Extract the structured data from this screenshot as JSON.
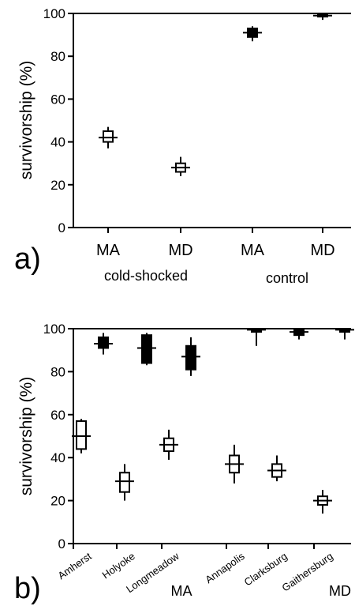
{
  "chart_data": [
    {
      "type": "box",
      "panel_label": "a)",
      "ylabel": "survivorship (%)",
      "ylim": [
        0,
        100
      ],
      "yticks": [
        0,
        20,
        40,
        60,
        80,
        100
      ],
      "categories": [
        "MA",
        "MD",
        "MA",
        "MD"
      ],
      "group_labels": [
        "cold-shocked",
        "control"
      ],
      "series": [
        {
          "category": "MA",
          "group": "cold-shocked",
          "fill": "#ffffff",
          "median": 42,
          "q1": 40,
          "q3": 45,
          "min": 37,
          "max": 47
        },
        {
          "category": "MD",
          "group": "cold-shocked",
          "fill": "#ffffff",
          "median": 28,
          "q1": 26,
          "q3": 30,
          "min": 24,
          "max": 33
        },
        {
          "category": "MA",
          "group": "control",
          "fill": "#000000",
          "median": 91,
          "q1": 89,
          "q3": 93,
          "min": 87,
          "max": 94
        },
        {
          "category": "MD",
          "group": "control",
          "fill": "#000000",
          "median": 99,
          "q1": 98.5,
          "q3": 100,
          "min": 97,
          "max": 100
        }
      ]
    },
    {
      "type": "box",
      "panel_label": "b)",
      "ylabel": "survivorship (%)",
      "ylim": [
        0,
        100
      ],
      "yticks": [
        0,
        20,
        40,
        60,
        80,
        100
      ],
      "categories": [
        "Amherst",
        "Holyoke",
        "Longmeadow",
        "Annapolis",
        "Clarksburg",
        "Gaithersburg"
      ],
      "region_labels": [
        {
          "text": "MA",
          "after": "Longmeadow"
        },
        {
          "text": "MD",
          "after": "Gaithersburg"
        }
      ],
      "series": [
        {
          "name": "cold-shocked",
          "fill": "#ffffff",
          "boxes": [
            {
              "category": "Amherst",
              "median": 50,
              "q1": 44,
              "q3": 57,
              "min": 42,
              "max": 58
            },
            {
              "category": "Holyoke",
              "median": 29,
              "q1": 24,
              "q3": 33,
              "min": 20,
              "max": 37
            },
            {
              "category": "Longmeadow",
              "median": 46,
              "q1": 43,
              "q3": 49,
              "min": 39,
              "max": 53
            },
            {
              "category": "Annapolis",
              "median": 37,
              "q1": 33,
              "q3": 41,
              "min": 28,
              "max": 46
            },
            {
              "category": "Clarksburg",
              "median": 34,
              "q1": 31,
              "q3": 37,
              "min": 29,
              "max": 41
            },
            {
              "category": "Gaithersburg",
              "median": 20,
              "q1": 18,
              "q3": 22,
              "min": 14,
              "max": 25
            }
          ]
        },
        {
          "name": "control",
          "fill": "#000000",
          "boxes": [
            {
              "category": "Amherst",
              "median": 93,
              "q1": 91,
              "q3": 96,
              "min": 88,
              "max": 98
            },
            {
              "category": "Holyoke",
              "median": 91,
              "q1": 84,
              "q3": 97,
              "min": 83,
              "max": 98
            },
            {
              "category": "Longmeadow",
              "median": 87,
              "q1": 81,
              "q3": 92,
              "min": 78,
              "max": 96
            },
            {
              "category": "Annapolis",
              "median": 99.5,
              "q1": 98.5,
              "q3": 100,
              "min": 92,
              "max": 100
            },
            {
              "category": "Clarksburg",
              "median": 98.5,
              "q1": 97,
              "q3": 100,
              "min": 95,
              "max": 100
            },
            {
              "category": "Gaithersburg",
              "median": 99.5,
              "q1": 98.5,
              "q3": 100,
              "min": 95,
              "max": 100
            }
          ]
        }
      ]
    }
  ]
}
